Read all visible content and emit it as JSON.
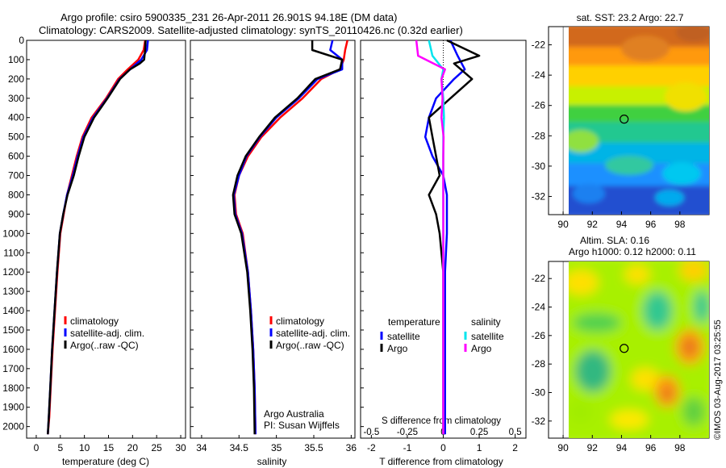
{
  "header": {
    "line1": "Argo profile: csiro 5900335_231 26-Apr-2011 26.901S 94.18E (DM data)",
    "line2": "Climatology: CARS2009. Satellite-adjusted climatology: synTS_20110426.nc (0.32d earlier)"
  },
  "credit": "©IMOS 03-Aug-2017 03:25:55",
  "colors": {
    "climatology": "#ff0000",
    "satellite": "#0000ff",
    "argo": "#000000",
    "sat_salinity": "#00e5ee",
    "argo_salinity": "#ff00ff"
  },
  "chart_data": [
    {
      "type": "line",
      "xlabel": "temperature (deg C)",
      "xlim": [
        -2,
        31
      ],
      "xticks": [
        0,
        5,
        10,
        15,
        20,
        25,
        30
      ],
      "ylim": [
        2060,
        0
      ],
      "yticks": [
        0,
        100,
        200,
        300,
        400,
        500,
        600,
        700,
        800,
        900,
        1000,
        1100,
        1200,
        1300,
        1400,
        1500,
        1600,
        1700,
        1800,
        1900,
        2000
      ],
      "legend": [
        "climatology",
        "satellite-adj. clim.",
        "Argo(..raw -QC)"
      ],
      "series": [
        {
          "name": "climatology",
          "color": "#ff0000",
          "x": [
            22.6,
            22.3,
            21.2,
            19,
            17,
            14.5,
            11.5,
            9.6,
            8.4,
            7.4,
            6.4,
            5.7,
            5.0,
            4.4,
            3.9,
            3.4,
            3.0,
            2.7,
            2.4
          ],
          "y": [
            0,
            50,
            100,
            150,
            200,
            300,
            400,
            500,
            600,
            700,
            800,
            900,
            1000,
            1200,
            1400,
            1600,
            1800,
            1950,
            2040
          ]
        },
        {
          "name": "satellite-adj. clim.",
          "color": "#0000ff",
          "x": [
            23.2,
            23.0,
            21.8,
            19.5,
            17.3,
            14.7,
            11.8,
            9.8,
            8.6,
            7.6,
            6.4,
            5.6,
            4.9,
            4.3,
            3.8,
            3.3,
            2.9,
            2.6,
            2.4
          ],
          "y": [
            0,
            50,
            100,
            150,
            200,
            300,
            400,
            500,
            600,
            700,
            800,
            900,
            1000,
            1200,
            1400,
            1600,
            1800,
            1950,
            2040
          ]
        },
        {
          "name": "Argo(..raw -QC)",
          "color": "#000000",
          "x": [
            22.7,
            22.6,
            22.4,
            21.5,
            19.5,
            17.4,
            14.8,
            12.0,
            10.0,
            8.8,
            7.8,
            6.5,
            5.6,
            4.9,
            4.3,
            3.8,
            3.3,
            2.9,
            2.6,
            2.4
          ],
          "y": [
            0,
            50,
            100,
            120,
            150,
            200,
            300,
            400,
            500,
            600,
            700,
            800,
            900,
            1000,
            1200,
            1400,
            1600,
            1800,
            1950,
            2040
          ]
        }
      ]
    },
    {
      "type": "line",
      "xlabel": "salinity",
      "xlim": [
        33.85,
        36.05
      ],
      "xticks": [
        34,
        34.5,
        35,
        35.5,
        36
      ],
      "ylim": [
        2060,
        0
      ],
      "legend": [
        "climatology",
        "satellite-adj. clim.",
        "Argo(..raw -QC)"
      ],
      "annotation": [
        "Argo Australia",
        "PI: Susan Wijffels"
      ],
      "series": [
        {
          "name": "climatology",
          "color": "#ff0000",
          "x": [
            35.95,
            35.92,
            35.9,
            35.85,
            35.6,
            35.35,
            35.05,
            34.8,
            34.62,
            34.5,
            34.44,
            34.46,
            34.55,
            34.62,
            34.66,
            34.69,
            34.71,
            34.72
          ],
          "y": [
            0,
            50,
            100,
            150,
            200,
            300,
            400,
            500,
            600,
            700,
            800,
            900,
            1000,
            1200,
            1400,
            1600,
            1800,
            2040
          ]
        },
        {
          "name": "satellite-adj. clim.",
          "color": "#0000ff",
          "x": [
            35.75,
            35.72,
            35.88,
            35.88,
            35.55,
            35.3,
            35.0,
            34.78,
            34.6,
            34.5,
            34.43,
            34.45,
            34.54,
            34.62,
            34.66,
            34.69,
            34.71,
            34.72
          ],
          "y": [
            0,
            50,
            100,
            150,
            200,
            300,
            400,
            500,
            600,
            700,
            800,
            900,
            1000,
            1200,
            1400,
            1600,
            1800,
            2040
          ]
        },
        {
          "name": "Argo(..raw -QC)",
          "color": "#000000",
          "x": [
            35.48,
            35.48,
            35.88,
            35.85,
            35.52,
            35.28,
            34.98,
            34.77,
            34.59,
            34.48,
            34.42,
            34.44,
            34.53,
            34.61,
            34.65,
            34.68,
            34.7,
            34.71
          ],
          "y": [
            0,
            50,
            100,
            150,
            200,
            300,
            400,
            500,
            600,
            700,
            800,
            900,
            1000,
            1200,
            1400,
            1600,
            1800,
            2040
          ]
        }
      ]
    },
    {
      "type": "line",
      "xlabel": "T difference from climatology",
      "xlabel_top": "S difference from climatology",
      "xlim": [
        -2.3,
        2.3
      ],
      "xticks": [
        -2,
        -1,
        0,
        1,
        2
      ],
      "sticks": [
        -0.5,
        -0.25,
        0,
        0.25,
        0.5
      ],
      "ylim": [
        2060,
        0
      ],
      "legend_titles": [
        "temperature",
        "salinity"
      ],
      "legend": [
        "satellite",
        "Argo",
        "satellite",
        "Argo"
      ],
      "series": [
        {
          "name": "satellite",
          "color": "#0000ff",
          "x": [
            0.2,
            0.4,
            0.6,
            0.3,
            -0.2,
            -0.4,
            -0.5,
            -0.3,
            0,
            0.1,
            0.1,
            0.1,
            0.05,
            0.05,
            0.05
          ],
          "y": [
            0,
            80,
            150,
            200,
            300,
            400,
            500,
            600,
            700,
            800,
            900,
            1000,
            1200,
            1600,
            2040
          ]
        },
        {
          "name": "Argo",
          "color": "#000000",
          "x": [
            0.1,
            1.0,
            0.3,
            0.8,
            0.2,
            -0.4,
            -0.3,
            -0.2,
            -0.1,
            -0.4,
            -0.2,
            -0.1,
            0,
            0,
            0
          ],
          "y": [
            0,
            80,
            120,
            200,
            300,
            400,
            500,
            600,
            700,
            800,
            900,
            1000,
            1200,
            1600,
            2040
          ]
        },
        {
          "name": "satellite",
          "color": "#00e5ee",
          "x": [
            -0.4,
            -0.3,
            0,
            -0.05,
            0,
            0.02,
            0,
            0,
            0,
            0,
            0,
            0,
            0,
            0
          ],
          "y": [
            0,
            80,
            150,
            200,
            300,
            400,
            500,
            600,
            700,
            800,
            900,
            1200,
            1600,
            2040
          ]
        },
        {
          "name": "Argo",
          "color": "#ff00ff",
          "x": [
            -0.75,
            -0.7,
            0.05,
            -0.05,
            -0.02,
            -0.05,
            0.01,
            0,
            0,
            0,
            0,
            0,
            0,
            0
          ],
          "y": [
            0,
            80,
            150,
            200,
            300,
            400,
            500,
            600,
            700,
            800,
            900,
            1200,
            1600,
            2040
          ]
        }
      ]
    },
    {
      "type": "heatmap",
      "title": "sat. SST: 23.2  Argo: 22.7",
      "xticks": [
        90,
        92,
        94,
        96,
        98
      ],
      "yticks": [
        -22,
        -24,
        -26,
        -28,
        -30,
        -32
      ],
      "xlim": [
        89,
        100
      ],
      "ylim": [
        -33.2,
        -20.8
      ],
      "marker": [
        94.18,
        -26.9
      ]
    },
    {
      "type": "heatmap",
      "title": "Altim. SLA: 0.16",
      "subtitle": "Argo h1000: 0.12 h2000: 0.11",
      "xticks": [
        90,
        92,
        94,
        96,
        98
      ],
      "yticks": [
        -22,
        -24,
        -26,
        -28,
        -30,
        -32
      ],
      "xlim": [
        89,
        100
      ],
      "ylim": [
        -33.2,
        -20.8
      ],
      "marker": [
        94.18,
        -26.9
      ]
    }
  ]
}
